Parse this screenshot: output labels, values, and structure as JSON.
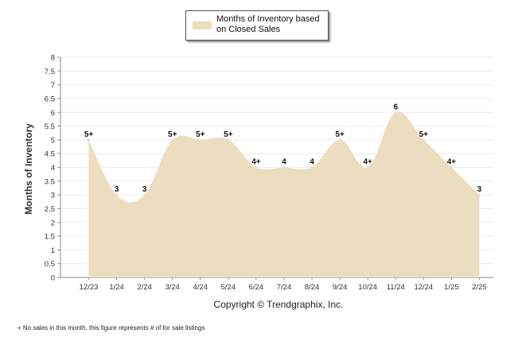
{
  "chart_data": {
    "type": "area",
    "categories": [
      "12/23",
      "1/24",
      "2/24",
      "3/24",
      "4/24",
      "5/24",
      "6/24",
      "7/24",
      "8/24",
      "9/24",
      "10/24",
      "11/24",
      "12/24",
      "1/25",
      "2/25"
    ],
    "series": [
      {
        "name": "Months of Inventory based on Closed Sales",
        "values": [
          5,
          3,
          3,
          5,
          5,
          5,
          4,
          4,
          4,
          5,
          4,
          6,
          5,
          4,
          3
        ],
        "labels": [
          "5+",
          "3",
          "3",
          "5+",
          "5+",
          "5+",
          "4+",
          "4",
          "4",
          "5+",
          "4+",
          "6",
          "5+",
          "4+",
          "3"
        ],
        "color": "#ecdcc0"
      }
    ],
    "ylabel": "Months of Inventory",
    "yticks": [
      "0",
      "0.5",
      "1",
      "1.5",
      "2",
      "2.5",
      "3",
      "3.5",
      "4",
      "4.5",
      "5",
      "5.5",
      "6",
      "6.5",
      "7",
      "7.5",
      "8"
    ],
    "ylim": [
      0,
      8
    ],
    "grid": true,
    "legend": "top-center"
  },
  "legend": {
    "label": "Months of Inventory based on Closed Sales",
    "swatch_color": "#ecdcc0"
  },
  "copyright": "Copyright © Trendgraphix, Inc.",
  "footnote": "+  No sales in this month, this figure represents # of for sale listings"
}
